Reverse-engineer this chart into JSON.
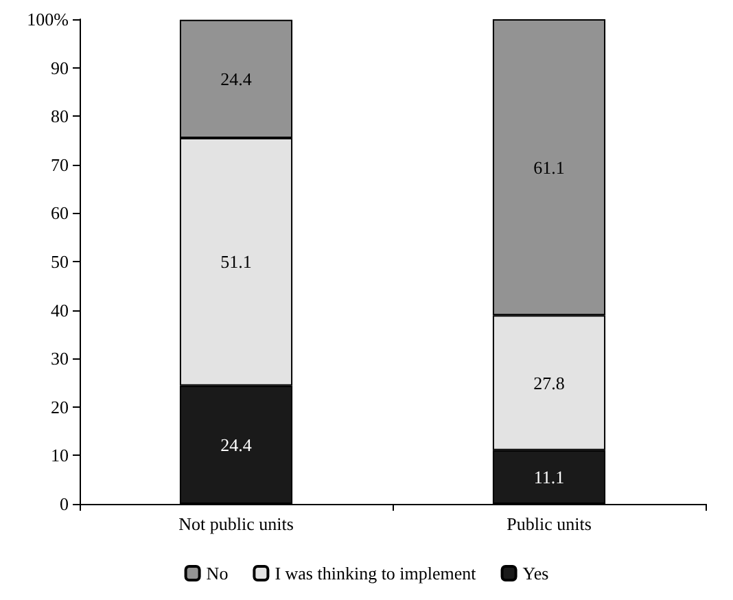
{
  "chart_data": {
    "type": "bar",
    "stacked": true,
    "categories": [
      "Not public units",
      "Public units"
    ],
    "series": [
      {
        "name": "Yes",
        "color": "#1a1a1a",
        "values": [
          24.4,
          11.1
        ]
      },
      {
        "name": "I was thinking to implement",
        "color": "#e3e3e3",
        "values": [
          51.1,
          27.8
        ]
      },
      {
        "name": "No",
        "color": "#939393",
        "values": [
          24.4,
          61.1
        ]
      }
    ],
    "ylim": [
      0,
      100
    ],
    "yticks": [
      0,
      10,
      20,
      30,
      40,
      50,
      60,
      70,
      80,
      90,
      {
        "value": 100,
        "label": "100%"
      }
    ],
    "grid": false,
    "legend": "bottom",
    "data_labels": true
  }
}
